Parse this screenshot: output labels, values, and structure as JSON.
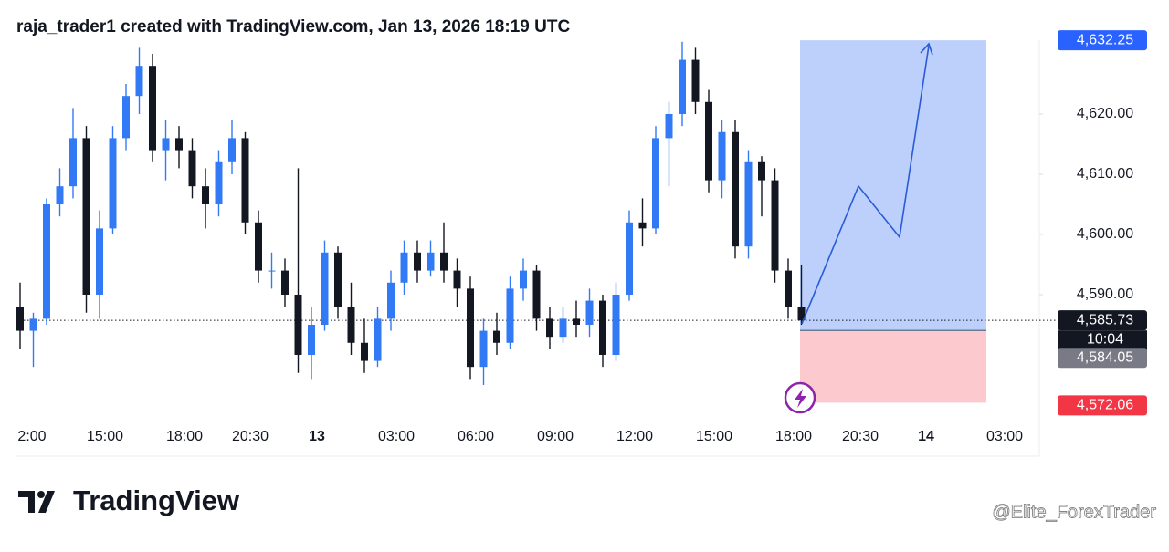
{
  "header": "raja_trader1 created with TradingView.com, Jan 13, 2026 18:19 UTC",
  "chart_data": {
    "type": "candlestick",
    "up_color": "#3179f5",
    "down_color": "#131722",
    "ylim": [
      4569.24,
      4632.27
    ],
    "yticks": [
      {
        "value": 4590,
        "label": "4,590.00"
      },
      {
        "value": 4600,
        "label": "4,600.00"
      },
      {
        "value": 4610,
        "label": "4,610.00"
      },
      {
        "value": 4620,
        "label": "4,620.00"
      }
    ],
    "xtick_labels": [
      "2:00",
      "15:00",
      "18:00",
      "20:30",
      "13",
      "03:00",
      "06:00",
      "09:00",
      "12:00",
      "15:00",
      "18:00",
      "20:30",
      "14",
      "03:00"
    ],
    "ohlc": [
      [
        4588,
        4592,
        4581,
        4584
      ],
      [
        4584,
        4587,
        4578,
        4586
      ],
      [
        4586,
        4606,
        4585,
        4605
      ],
      [
        4605,
        4611,
        4603,
        4608
      ],
      [
        4608,
        4621,
        4606,
        4616
      ],
      [
        4616,
        4618,
        4587,
        4590
      ],
      [
        4590,
        4604,
        4586,
        4601
      ],
      [
        4601,
        4618,
        4600,
        4616
      ],
      [
        4616,
        4625,
        4614,
        4623
      ],
      [
        4623,
        4631,
        4620,
        4628
      ],
      [
        4628,
        4630,
        4612,
        4614
      ],
      [
        4614,
        4619,
        4609,
        4616
      ],
      [
        4616,
        4618,
        4611,
        4614
      ],
      [
        4614,
        4616,
        4606,
        4608
      ],
      [
        4608,
        4611,
        4601,
        4605
      ],
      [
        4605,
        4614,
        4603,
        4612
      ],
      [
        4612,
        4619,
        4610,
        4616
      ],
      [
        4616,
        4617,
        4600,
        4602
      ],
      [
        4602,
        4604,
        4592,
        4594
      ],
      [
        4594,
        4597,
        4591,
        4594
      ],
      [
        4594,
        4596,
        4588,
        4590
      ],
      [
        4590,
        4611,
        4577,
        4580
      ],
      [
        4580,
        4588,
        4576,
        4585
      ],
      [
        4585,
        4599,
        4584,
        4597
      ],
      [
        4597,
        4598,
        4586,
        4588
      ],
      [
        4588,
        4592,
        4580,
        4582
      ],
      [
        4582,
        4586,
        4577,
        4579
      ],
      [
        4579,
        4588,
        4578,
        4586
      ],
      [
        4586,
        4594,
        4584,
        4592
      ],
      [
        4592,
        4599,
        4590,
        4597
      ],
      [
        4597,
        4599,
        4592,
        4594
      ],
      [
        4594,
        4599,
        4593,
        4597
      ],
      [
        4597,
        4602,
        4592,
        4594
      ],
      [
        4594,
        4596,
        4588,
        4591
      ],
      [
        4591,
        4593,
        4576,
        4578
      ],
      [
        4578,
        4586,
        4575,
        4584
      ],
      [
        4584,
        4587,
        4580,
        4582
      ],
      [
        4582,
        4593,
        4581,
        4591
      ],
      [
        4591,
        4596,
        4589,
        4594
      ],
      [
        4594,
        4595,
        4584,
        4586
      ],
      [
        4586,
        4588,
        4581,
        4583
      ],
      [
        4583,
        4588,
        4582,
        4586
      ],
      [
        4586,
        4589,
        4583,
        4585
      ],
      [
        4585,
        4591,
        4583,
        4589
      ],
      [
        4589,
        4590,
        4578,
        4580
      ],
      [
        4580,
        4592,
        4579,
        4590
      ],
      [
        4590,
        4604,
        4589,
        4602
      ],
      [
        4602,
        4606,
        4598,
        4601
      ],
      [
        4601,
        4618,
        4600,
        4616
      ],
      [
        4616,
        4622,
        4608,
        4620
      ],
      [
        4620,
        4632,
        4618,
        4629
      ],
      [
        4629,
        4631,
        4620,
        4622
      ],
      [
        4622,
        4624,
        4607,
        4609
      ],
      [
        4609,
        4619,
        4606,
        4617
      ],
      [
        4617,
        4619,
        4596,
        4598
      ],
      [
        4598,
        4614,
        4596,
        4612
      ],
      [
        4612,
        4613,
        4603,
        4609
      ],
      [
        4609,
        4611,
        4592,
        4594
      ],
      [
        4594,
        4596,
        4586,
        4588
      ],
      [
        4588,
        4595,
        4585,
        4585.73
      ]
    ],
    "last_price": {
      "value": 4585.73,
      "label": "4,585.73"
    },
    "countdown": "10:04",
    "target": {
      "value": 4632.25,
      "label": "4,632.25"
    },
    "entry": {
      "value": 4584.05,
      "label": "4,584.05"
    },
    "stop": {
      "value": 4572.06,
      "label": "4,572.06"
    }
  },
  "footer": {
    "logo": "TradingView",
    "watermark": "@Elite_ForexTrader"
  }
}
